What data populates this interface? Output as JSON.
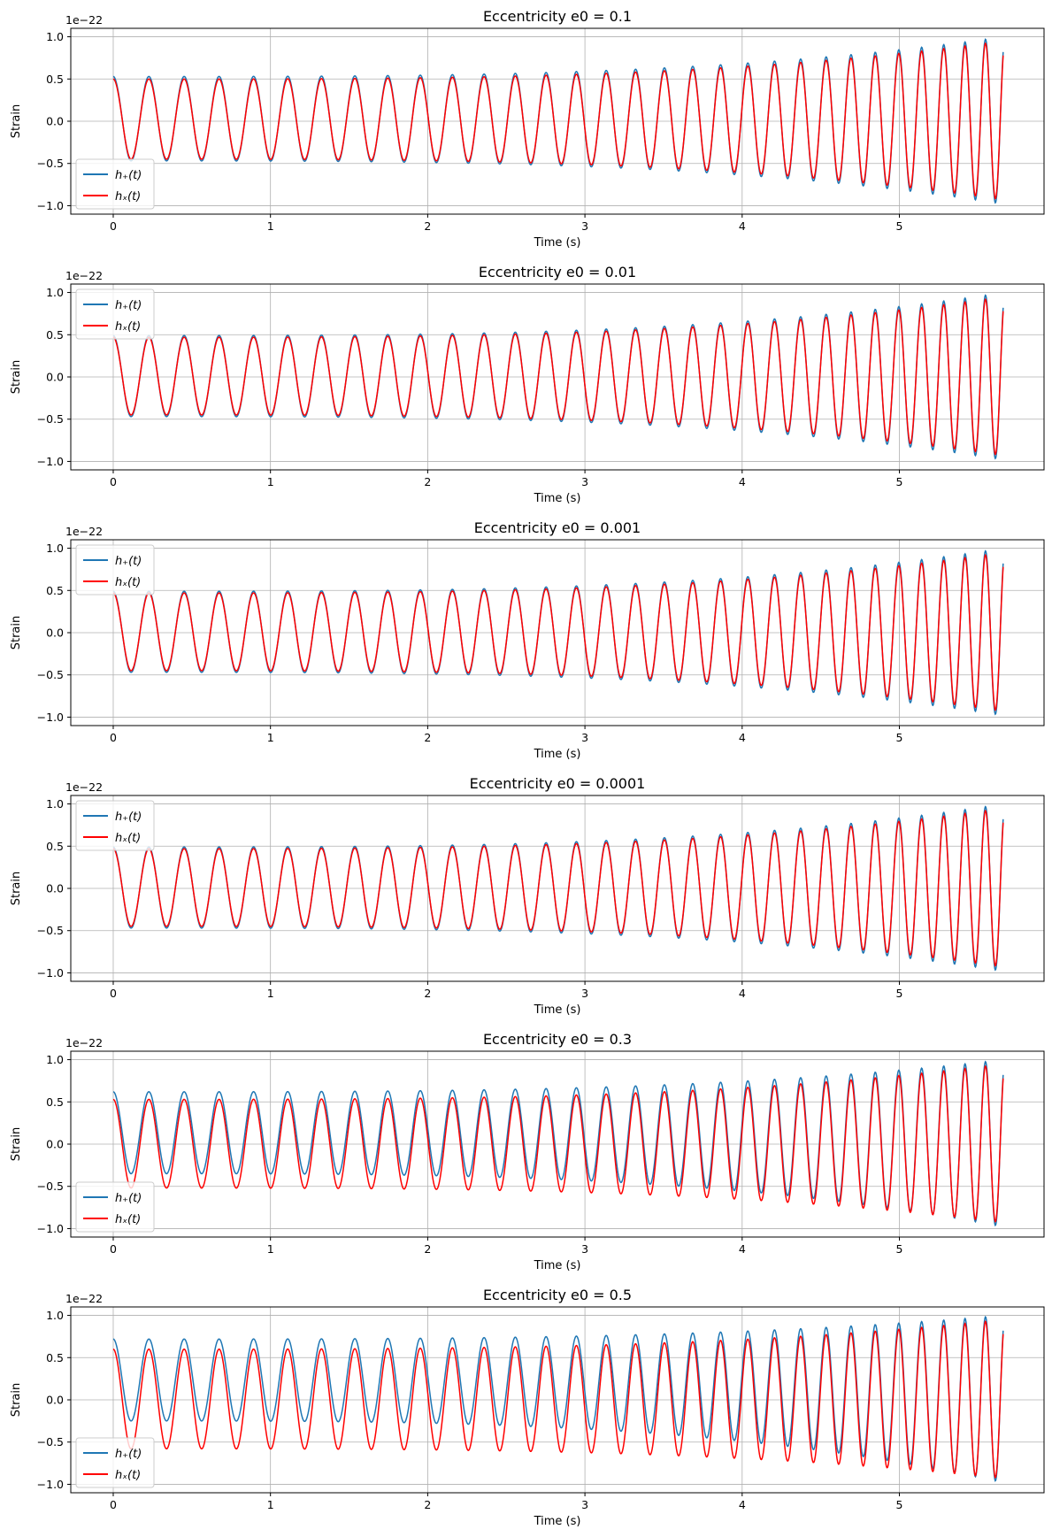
{
  "colors": {
    "plus": "#1f77b4",
    "cross": "#ff0000",
    "grid": "#b0b0b0"
  },
  "chart_data": [
    {
      "type": "line",
      "title": "Eccentricity e0 = 0.1",
      "xlabel": "Time (s)",
      "ylabel": "Strain",
      "offset_text": "1e−22",
      "xlim": [
        -0.27,
        5.92
      ],
      "ylim": [
        -1.1,
        1.1
      ],
      "xticks": [
        "0",
        "1",
        "2",
        "3",
        "4",
        "5"
      ],
      "yticks": [
        "1.0",
        "0.5",
        "0.0",
        "−0.5",
        "−1.0"
      ],
      "grid": true,
      "legend": "lower-left",
      "series": [
        {
          "name": "h₊(t)",
          "color": "#1f77b4",
          "amp_start": 0.53,
          "amp_end": 1.0,
          "min_start": -0.47,
          "min_end": -0.98
        },
        {
          "name": "hₓ(t)",
          "color": "#ff0000",
          "amp_start": 0.5,
          "amp_end": 0.95,
          "min_start": -0.45,
          "min_end": -0.93
        }
      ],
      "t_end": 5.66
    },
    {
      "type": "line",
      "title": "Eccentricity e0 = 0.01",
      "xlabel": "Time (s)",
      "ylabel": "Strain",
      "offset_text": "1e−22",
      "xlim": [
        -0.27,
        5.92
      ],
      "ylim": [
        -1.1,
        1.1
      ],
      "xticks": [
        "0",
        "1",
        "2",
        "3",
        "4",
        "5"
      ],
      "yticks": [
        "1.0",
        "0.5",
        "0.0",
        "−0.5",
        "−1.0"
      ],
      "grid": true,
      "legend": "upper-left",
      "series": [
        {
          "name": "h₊(t)",
          "color": "#1f77b4",
          "amp_start": 0.49,
          "amp_end": 1.0,
          "min_start": -0.47,
          "min_end": -0.98
        },
        {
          "name": "hₓ(t)",
          "color": "#ff0000",
          "amp_start": 0.47,
          "amp_end": 0.95,
          "min_start": -0.45,
          "min_end": -0.93
        }
      ],
      "t_end": 5.66
    },
    {
      "type": "line",
      "title": "Eccentricity e0 = 0.001",
      "xlabel": "Time (s)",
      "ylabel": "Strain",
      "offset_text": "1e−22",
      "xlim": [
        -0.27,
        5.92
      ],
      "ylim": [
        -1.1,
        1.1
      ],
      "xticks": [
        "0",
        "1",
        "2",
        "3",
        "4",
        "5"
      ],
      "yticks": [
        "1.0",
        "0.5",
        "0.0",
        "−0.5",
        "−1.0"
      ],
      "grid": true,
      "legend": "upper-left",
      "series": [
        {
          "name": "h₊(t)",
          "color": "#1f77b4",
          "amp_start": 0.49,
          "amp_end": 1.0,
          "min_start": -0.47,
          "min_end": -0.98
        },
        {
          "name": "hₓ(t)",
          "color": "#ff0000",
          "amp_start": 0.47,
          "amp_end": 0.95,
          "min_start": -0.45,
          "min_end": -0.93
        }
      ],
      "t_end": 5.66
    },
    {
      "type": "line",
      "title": "Eccentricity e0 = 0.0001",
      "xlabel": "Time (s)",
      "ylabel": "Strain",
      "offset_text": "1e−22",
      "xlim": [
        -0.27,
        5.92
      ],
      "ylim": [
        -1.1,
        1.1
      ],
      "xticks": [
        "0",
        "1",
        "2",
        "3",
        "4",
        "5"
      ],
      "yticks": [
        "1.0",
        "0.5",
        "0.0",
        "−0.5",
        "−1.0"
      ],
      "grid": true,
      "legend": "upper-left",
      "series": [
        {
          "name": "h₊(t)",
          "color": "#1f77b4",
          "amp_start": 0.49,
          "amp_end": 1.0,
          "min_start": -0.47,
          "min_end": -0.98
        },
        {
          "name": "hₓ(t)",
          "color": "#ff0000",
          "amp_start": 0.47,
          "amp_end": 0.95,
          "min_start": -0.45,
          "min_end": -0.93
        }
      ],
      "t_end": 5.66
    },
    {
      "type": "line",
      "title": "Eccentricity e0 = 0.3",
      "xlabel": "Time (s)",
      "ylabel": "Strain",
      "offset_text": "1e−22",
      "xlim": [
        -0.27,
        5.92
      ],
      "ylim": [
        -1.1,
        1.1
      ],
      "xticks": [
        "0",
        "1",
        "2",
        "3",
        "4",
        "5"
      ],
      "yticks": [
        "1.0",
        "0.5",
        "0.0",
        "−0.5",
        "−1.0"
      ],
      "grid": true,
      "legend": "lower-left",
      "series": [
        {
          "name": "h₊(t)",
          "color": "#1f77b4",
          "amp_start": 0.62,
          "amp_end": 1.0,
          "min_start": -0.35,
          "min_end": -0.98
        },
        {
          "name": "hₓ(t)",
          "color": "#ff0000",
          "amp_start": 0.53,
          "amp_end": 0.95,
          "min_start": -0.52,
          "min_end": -0.93
        }
      ],
      "t_end": 5.66
    },
    {
      "type": "line",
      "title": "Eccentricity e0 = 0.5",
      "xlabel": "Time (s)",
      "ylabel": "Strain",
      "offset_text": "1e−22",
      "xlim": [
        -0.27,
        5.92
      ],
      "ylim": [
        -1.1,
        1.1
      ],
      "xticks": [
        "0",
        "1",
        "2",
        "3",
        "4",
        "5"
      ],
      "yticks": [
        "1.0",
        "0.5",
        "0.0",
        "−0.5",
        "−1.0"
      ],
      "grid": true,
      "legend": "lower-left",
      "series": [
        {
          "name": "h₊(t)",
          "color": "#1f77b4",
          "amp_start": 0.72,
          "amp_end": 1.0,
          "min_start": -0.25,
          "min_end": -0.98
        },
        {
          "name": "hₓ(t)",
          "color": "#ff0000",
          "amp_start": 0.6,
          "amp_end": 0.95,
          "min_start": -0.58,
          "min_end": -0.93
        }
      ],
      "t_end": 5.66
    }
  ]
}
